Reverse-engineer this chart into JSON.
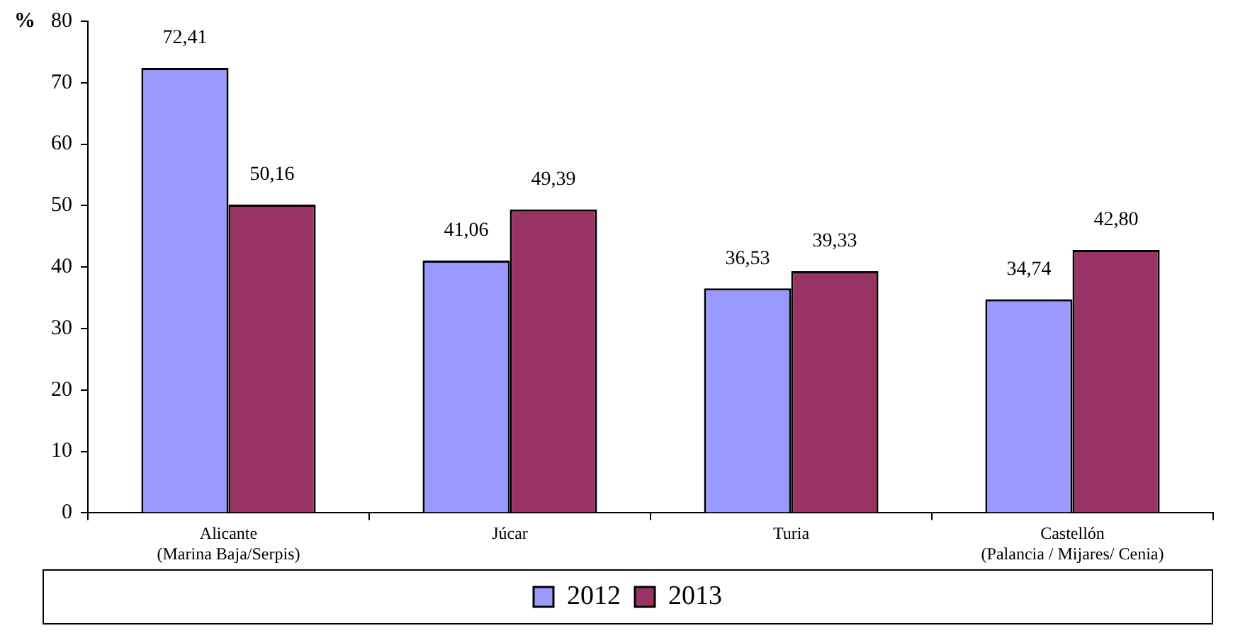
{
  "chart_data": {
    "type": "bar",
    "ylabel": "%",
    "categories": [
      "Alicante\n(Marina Baja/Serpis)",
      "Júcar",
      "Turia",
      "Castellón\n(Palancia / Mijares/ Cenia)"
    ],
    "series": [
      {
        "name": "2012",
        "color": "#9999ff",
        "values": [
          72.41,
          41.06,
          36.53,
          34.74
        ],
        "value_labels": [
          "72,41",
          "41,06",
          "36,53",
          "34,74"
        ]
      },
      {
        "name": "2013",
        "color": "#993366",
        "values": [
          50.16,
          49.39,
          39.33,
          42.8
        ],
        "value_labels": [
          "50,16",
          "49,39",
          "39,33",
          "42,80"
        ]
      }
    ],
    "ylim": [
      0,
      80
    ],
    "yticks": [
      0,
      10,
      20,
      30,
      40,
      50,
      60,
      70,
      80
    ],
    "grid": false,
    "legend": "bottom"
  }
}
